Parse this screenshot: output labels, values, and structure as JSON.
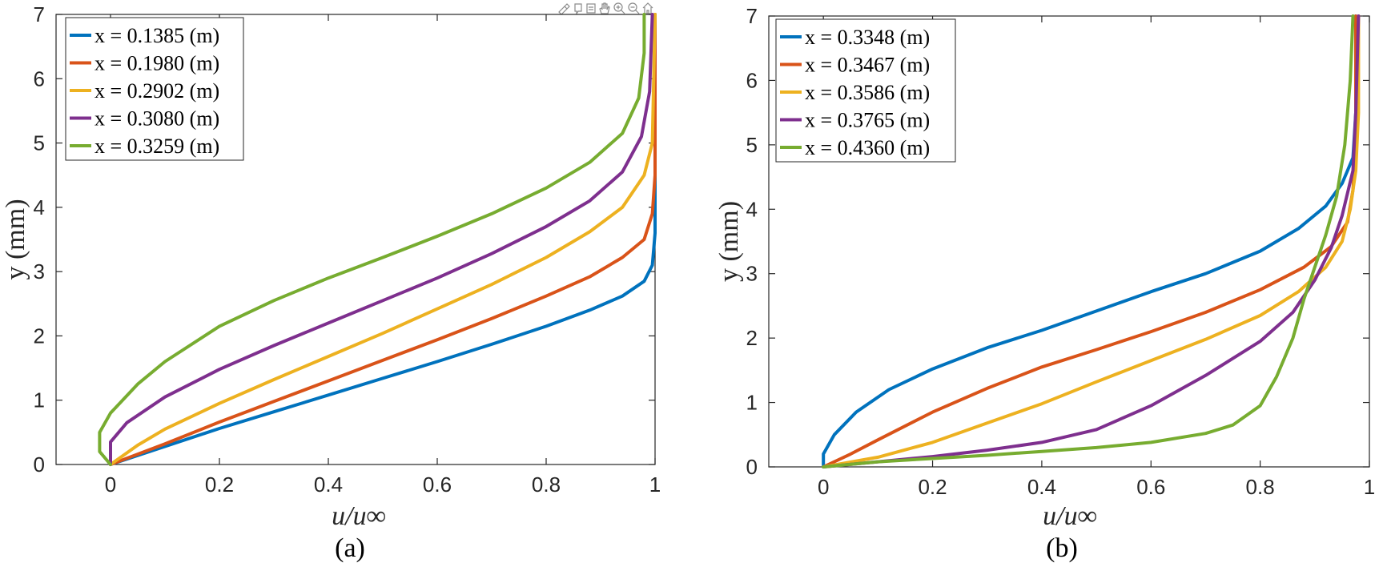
{
  "chart_data": [
    {
      "type": "line",
      "caption": "(a)",
      "xlabel": "u/u∞",
      "ylabel": "y (mm)",
      "xlim": [
        -0.1,
        1.0
      ],
      "ylim": [
        0,
        7
      ],
      "xticks": [
        0,
        0.2,
        0.4,
        0.6,
        0.8,
        1
      ],
      "yticks": [
        0,
        1,
        2,
        3,
        4,
        5,
        6,
        7
      ],
      "xtick_labels": [
        "0",
        "0.2",
        "0.4",
        "0.6",
        "0.8",
        "1"
      ],
      "ytick_labels": [
        "0",
        "1",
        "2",
        "3",
        "4",
        "5",
        "6",
        "7"
      ],
      "legend_position": "top-left",
      "series": [
        {
          "name": "x = 0.1385 (m)",
          "color": "#0072BD",
          "points": [
            [
              0,
              0
            ],
            [
              0.1,
              0.28
            ],
            [
              0.2,
              0.56
            ],
            [
              0.3,
              0.82
            ],
            [
              0.4,
              1.08
            ],
            [
              0.5,
              1.34
            ],
            [
              0.6,
              1.6
            ],
            [
              0.7,
              1.87
            ],
            [
              0.8,
              2.15
            ],
            [
              0.88,
              2.4
            ],
            [
              0.94,
              2.62
            ],
            [
              0.98,
              2.85
            ],
            [
              0.995,
              3.1
            ],
            [
              1.0,
              3.6
            ],
            [
              1.0,
              7
            ]
          ]
        },
        {
          "name": "x = 0.1980 (m)",
          "color": "#D95319",
          "points": [
            [
              0,
              0
            ],
            [
              0.1,
              0.32
            ],
            [
              0.2,
              0.66
            ],
            [
              0.3,
              0.98
            ],
            [
              0.4,
              1.3
            ],
            [
              0.5,
              1.62
            ],
            [
              0.6,
              1.94
            ],
            [
              0.7,
              2.27
            ],
            [
              0.8,
              2.62
            ],
            [
              0.88,
              2.92
            ],
            [
              0.94,
              3.22
            ],
            [
              0.98,
              3.5
            ],
            [
              0.995,
              3.9
            ],
            [
              1.0,
              4.5
            ],
            [
              1.0,
              7
            ]
          ]
        },
        {
          "name": "x = 0.2902 (m)",
          "color": "#EDB120",
          "points": [
            [
              0,
              0
            ],
            [
              0.05,
              0.3
            ],
            [
              0.1,
              0.55
            ],
            [
              0.2,
              0.95
            ],
            [
              0.3,
              1.32
            ],
            [
              0.4,
              1.68
            ],
            [
              0.5,
              2.04
            ],
            [
              0.6,
              2.42
            ],
            [
              0.7,
              2.8
            ],
            [
              0.8,
              3.22
            ],
            [
              0.88,
              3.62
            ],
            [
              0.94,
              4.0
            ],
            [
              0.98,
              4.5
            ],
            [
              0.995,
              5.0
            ],
            [
              1.0,
              7
            ]
          ]
        },
        {
          "name": "x = 0.3080 (m)",
          "color": "#7E2F8E",
          "points": [
            [
              0,
              0
            ],
            [
              0.0,
              0.35
            ],
            [
              0.03,
              0.65
            ],
            [
              0.1,
              1.05
            ],
            [
              0.2,
              1.48
            ],
            [
              0.3,
              1.85
            ],
            [
              0.4,
              2.2
            ],
            [
              0.5,
              2.55
            ],
            [
              0.6,
              2.9
            ],
            [
              0.7,
              3.28
            ],
            [
              0.8,
              3.7
            ],
            [
              0.88,
              4.1
            ],
            [
              0.94,
              4.55
            ],
            [
              0.975,
              5.1
            ],
            [
              0.99,
              5.8
            ],
            [
              0.995,
              7
            ]
          ]
        },
        {
          "name": "x = 0.3259 (m)",
          "color": "#77AC30",
          "points": [
            [
              0.0,
              0
            ],
            [
              -0.02,
              0.2
            ],
            [
              -0.02,
              0.5
            ],
            [
              0.0,
              0.8
            ],
            [
              0.05,
              1.25
            ],
            [
              0.1,
              1.6
            ],
            [
              0.2,
              2.15
            ],
            [
              0.3,
              2.55
            ],
            [
              0.4,
              2.9
            ],
            [
              0.5,
              3.22
            ],
            [
              0.6,
              3.55
            ],
            [
              0.7,
              3.9
            ],
            [
              0.8,
              4.3
            ],
            [
              0.88,
              4.7
            ],
            [
              0.94,
              5.15
            ],
            [
              0.97,
              5.7
            ],
            [
              0.98,
              6.4
            ],
            [
              0.98,
              7
            ]
          ]
        }
      ]
    },
    {
      "type": "line",
      "caption": "(b)",
      "xlabel": "u/u∞",
      "ylabel": "y (mm)",
      "xlim": [
        -0.1,
        1.0
      ],
      "ylim": [
        0,
        7
      ],
      "xticks": [
        0,
        0.2,
        0.4,
        0.6,
        0.8,
        1
      ],
      "yticks": [
        0,
        1,
        2,
        3,
        4,
        5,
        6,
        7
      ],
      "xtick_labels": [
        "0",
        "0.2",
        "0.4",
        "0.6",
        "0.8",
        "1"
      ],
      "ytick_labels": [
        "0",
        "1",
        "2",
        "3",
        "4",
        "5",
        "6",
        "7"
      ],
      "legend_position": "top-left",
      "series": [
        {
          "name": "x = 0.3348 (m)",
          "color": "#0072BD",
          "points": [
            [
              0,
              0
            ],
            [
              0.0,
              0.2
            ],
            [
              0.02,
              0.5
            ],
            [
              0.06,
              0.85
            ],
            [
              0.12,
              1.2
            ],
            [
              0.2,
              1.52
            ],
            [
              0.3,
              1.85
            ],
            [
              0.4,
              2.12
            ],
            [
              0.5,
              2.42
            ],
            [
              0.6,
              2.72
            ],
            [
              0.7,
              3.0
            ],
            [
              0.8,
              3.35
            ],
            [
              0.87,
              3.7
            ],
            [
              0.92,
              4.05
            ],
            [
              0.95,
              4.4
            ],
            [
              0.97,
              4.8
            ],
            [
              0.975,
              5.5
            ],
            [
              0.975,
              7
            ]
          ]
        },
        {
          "name": "x = 0.3467 (m)",
          "color": "#D95319",
          "points": [
            [
              0,
              0
            ],
            [
              0.05,
              0.2
            ],
            [
              0.1,
              0.42
            ],
            [
              0.2,
              0.85
            ],
            [
              0.3,
              1.22
            ],
            [
              0.4,
              1.55
            ],
            [
              0.5,
              1.82
            ],
            [
              0.6,
              2.1
            ],
            [
              0.7,
              2.4
            ],
            [
              0.8,
              2.75
            ],
            [
              0.88,
              3.1
            ],
            [
              0.93,
              3.42
            ],
            [
              0.96,
              3.8
            ],
            [
              0.97,
              4.3
            ],
            [
              0.975,
              5.0
            ],
            [
              0.975,
              7
            ]
          ]
        },
        {
          "name": "x = 0.3586 (m)",
          "color": "#EDB120",
          "points": [
            [
              0,
              0
            ],
            [
              0.1,
              0.15
            ],
            [
              0.2,
              0.38
            ],
            [
              0.3,
              0.68
            ],
            [
              0.4,
              0.98
            ],
            [
              0.5,
              1.32
            ],
            [
              0.6,
              1.65
            ],
            [
              0.7,
              1.98
            ],
            [
              0.8,
              2.35
            ],
            [
              0.87,
              2.72
            ],
            [
              0.92,
              3.1
            ],
            [
              0.95,
              3.5
            ],
            [
              0.965,
              4.0
            ],
            [
              0.975,
              4.6
            ],
            [
              0.98,
              5.5
            ],
            [
              0.98,
              7
            ]
          ]
        },
        {
          "name": "x = 0.3765 (m)",
          "color": "#7E2F8E",
          "points": [
            [
              0,
              0
            ],
            [
              0.1,
              0.08
            ],
            [
              0.2,
              0.16
            ],
            [
              0.3,
              0.26
            ],
            [
              0.4,
              0.38
            ],
            [
              0.5,
              0.58
            ],
            [
              0.6,
              0.95
            ],
            [
              0.7,
              1.42
            ],
            [
              0.8,
              1.95
            ],
            [
              0.86,
              2.4
            ],
            [
              0.9,
              2.9
            ],
            [
              0.93,
              3.4
            ],
            [
              0.95,
              3.9
            ],
            [
              0.97,
              4.6
            ],
            [
              0.975,
              5.5
            ],
            [
              0.98,
              7
            ]
          ]
        },
        {
          "name": "x = 0.4360 (m)",
          "color": "#77AC30",
          "points": [
            [
              0,
              0
            ],
            [
              0.1,
              0.08
            ],
            [
              0.2,
              0.13
            ],
            [
              0.3,
              0.18
            ],
            [
              0.4,
              0.24
            ],
            [
              0.5,
              0.3
            ],
            [
              0.6,
              0.38
            ],
            [
              0.7,
              0.52
            ],
            [
              0.75,
              0.65
            ],
            [
              0.8,
              0.95
            ],
            [
              0.83,
              1.4
            ],
            [
              0.86,
              2.0
            ],
            [
              0.88,
              2.6
            ],
            [
              0.9,
              3.1
            ],
            [
              0.92,
              3.6
            ],
            [
              0.94,
              4.2
            ],
            [
              0.955,
              5.0
            ],
            [
              0.965,
              6.0
            ],
            [
              0.97,
              7
            ]
          ]
        }
      ]
    }
  ]
}
